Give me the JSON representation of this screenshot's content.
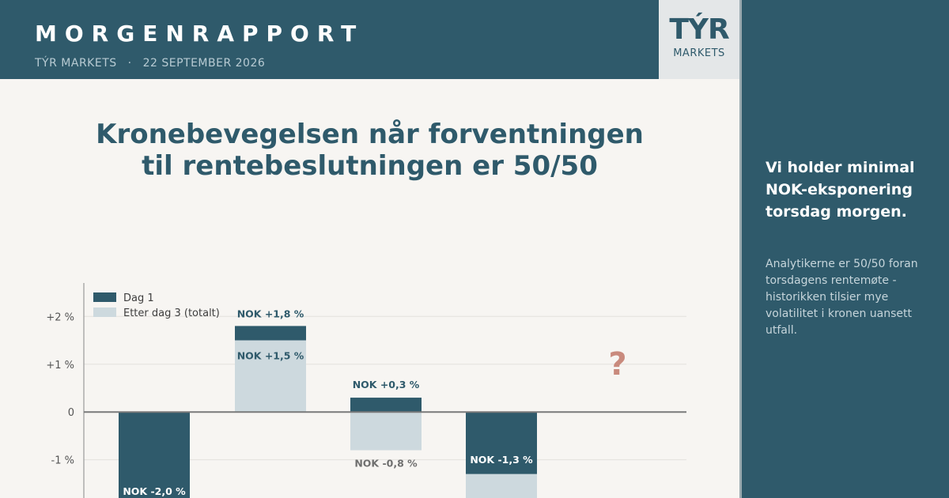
{
  "header": {
    "title": "MORGENRAPPORT",
    "brand": "TÝR MARKETS",
    "separator": "·",
    "date": "22 SEPTEMBER 2026"
  },
  "logo": {
    "mark": "TÝR",
    "sub": "MARKETS"
  },
  "chart_data": {
    "type": "bar",
    "title_lines": [
      "Kronebevegelsen når forventningen",
      "til rentebeslutningen er 50/50"
    ],
    "ytick_labels": [
      "+2 %",
      "+1 %",
      "0",
      "-1 %"
    ],
    "ytick_values": [
      2,
      1,
      0,
      -1
    ],
    "ylim": [
      -1.8,
      2.7
    ],
    "grid": true,
    "legend_position": "top-left",
    "series": [
      {
        "name": "Dag 1",
        "color": "#2f5a6b",
        "values": [
          -2.0,
          1.8,
          0.3,
          -1.3
        ]
      },
      {
        "name": "Etter dag 3 (totalt)",
        "color": "#cdd9de",
        "values": [
          null,
          1.5,
          -0.8,
          null
        ]
      }
    ],
    "data_labels": [
      [
        "NOK -2,0 %",
        "NOK +1,8 %",
        "NOK +0,3 %",
        "NOK -1,3 %"
      ],
      [
        "",
        "NOK +1,5 %",
        "NOK -0,8 %",
        ""
      ]
    ],
    "annotation": {
      "text": "?",
      "color": "#c98a7d"
    }
  },
  "sidebar": {
    "headline": "Vi holder minimal NOK-eksponering torsdag morgen.",
    "body": "Analytikerne er 50/50 foran torsdagens rentemøte - historikken tilsier mye volatilitet i kronen uansett utfall."
  }
}
